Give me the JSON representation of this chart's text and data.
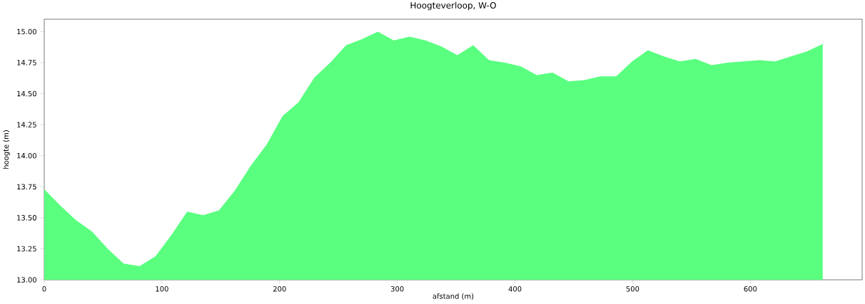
{
  "chart_data": {
    "type": "area",
    "title": "Hoogteverloop, W-O",
    "xlabel": "afstand (m)",
    "ylabel": "hoogte (m)",
    "x": [
      0,
      13.5,
      27,
      40.5,
      54,
      67.5,
      81,
      94.5,
      108,
      121.5,
      135,
      148.5,
      162,
      175.5,
      189,
      202.5,
      216,
      229.5,
      243,
      256.5,
      270,
      283.5,
      297,
      310.5,
      324,
      337.5,
      351,
      364.5,
      378,
      391.5,
      405,
      418.5,
      432,
      445.5,
      459,
      472.5,
      486,
      499.5,
      513,
      526.5,
      540,
      553.5,
      567,
      580.5,
      594,
      607.5,
      621,
      634.5,
      648,
      661.5
    ],
    "values": [
      13.73,
      13.6,
      13.48,
      13.39,
      13.25,
      13.13,
      13.11,
      13.19,
      13.36,
      13.55,
      13.52,
      13.56,
      13.72,
      13.92,
      14.09,
      14.32,
      14.43,
      14.63,
      14.75,
      14.89,
      14.94,
      15.0,
      14.93,
      14.96,
      14.93,
      14.88,
      14.81,
      14.89,
      14.77,
      14.75,
      14.72,
      14.65,
      14.67,
      14.6,
      14.61,
      14.64,
      14.64,
      14.76,
      14.85,
      14.8,
      14.76,
      14.78,
      14.73,
      14.75,
      14.76,
      14.77,
      14.76,
      14.8,
      14.84,
      14.9
    ],
    "color": "#5aff80",
    "xlim": [
      0,
      695
    ],
    "ylim": [
      13.0,
      15.1
    ],
    "xticks": [
      0,
      100,
      200,
      300,
      400,
      500,
      600
    ],
    "yticks": [
      {
        "value": 13.0,
        "label": "13.00"
      },
      {
        "value": 13.25,
        "label": "13.25"
      },
      {
        "value": 13.5,
        "label": "13.50"
      },
      {
        "value": 13.75,
        "label": "13.75"
      },
      {
        "value": 14.0,
        "label": "14.00"
      },
      {
        "value": 14.25,
        "label": "14.25"
      },
      {
        "value": 14.5,
        "label": "14.50"
      },
      {
        "value": 14.75,
        "label": "14.75"
      },
      {
        "value": 15.0,
        "label": "15.00"
      }
    ]
  }
}
